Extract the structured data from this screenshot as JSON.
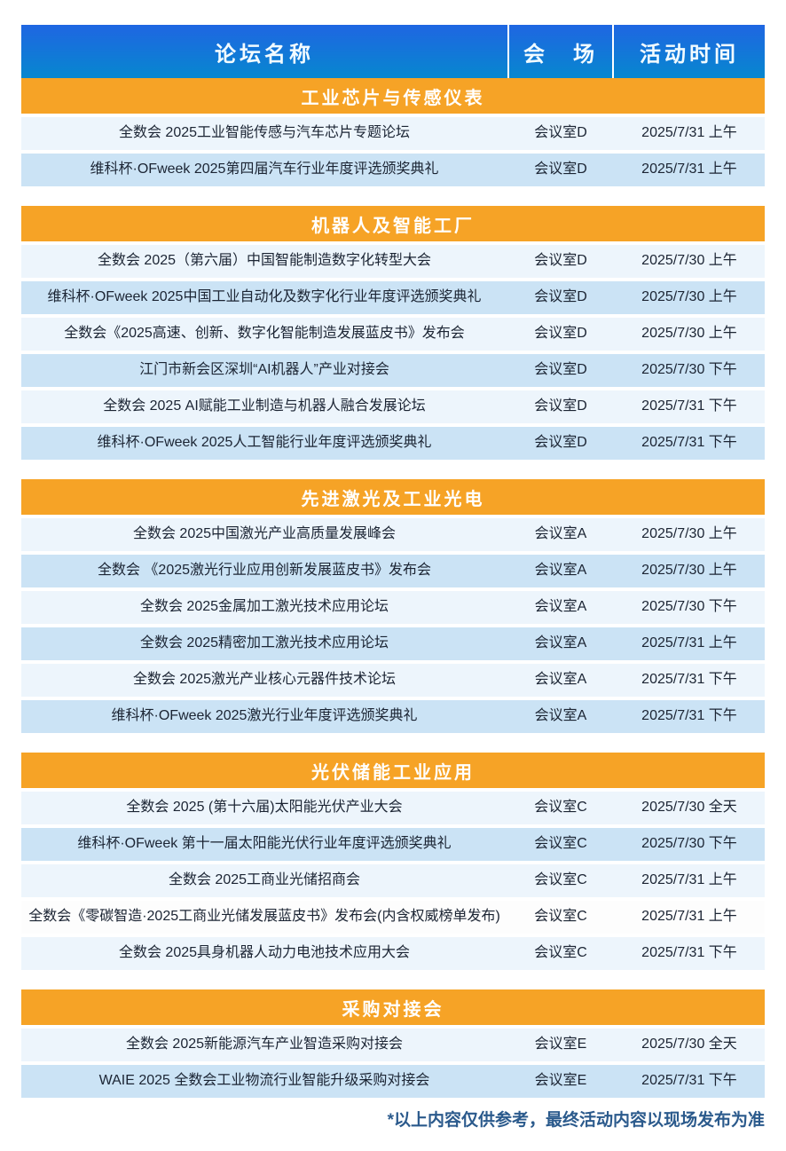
{
  "header": {
    "col_forum": "论坛名称",
    "col_venue": "会　场",
    "col_time": "活动时间"
  },
  "sections": [
    {
      "title": "工业芯片与传感仪表",
      "rows": [
        {
          "name": "全数会 2025工业智能传感与汽车芯片专题论坛",
          "venue": "会议室D",
          "time": "2025/7/31 上午",
          "shade": "light"
        },
        {
          "name": "维科杯·OFweek 2025第四届汽车行业年度评选颁奖典礼",
          "venue": "会议室D",
          "time": "2025/7/31 上午",
          "shade": "blue"
        }
      ]
    },
    {
      "title": "机器人及智能工厂",
      "rows": [
        {
          "name": "全数会 2025（第六届）中国智能制造数字化转型大会",
          "venue": "会议室D",
          "time": "2025/7/30 上午",
          "shade": "light"
        },
        {
          "name": "维科杯·OFweek 2025中国工业自动化及数字化行业年度评选颁奖典礼",
          "venue": "会议室D",
          "time": "2025/7/30 上午",
          "shade": "blue"
        },
        {
          "name": "全数会《2025高速、创新、数字化智能制造发展蓝皮书》发布会",
          "venue": "会议室D",
          "time": "2025/7/30 上午",
          "shade": "light"
        },
        {
          "name": "江门市新会区深圳“AI机器人”产业对接会",
          "venue": "会议室D",
          "time": "2025/7/30 下午",
          "shade": "blue"
        },
        {
          "name": "全数会 2025 AI赋能工业制造与机器人融合发展论坛",
          "venue": "会议室D",
          "time": "2025/7/31 下午",
          "shade": "light"
        },
        {
          "name": "维科杯·OFweek 2025人工智能行业年度评选颁奖典礼",
          "venue": "会议室D",
          "time": "2025/7/31 下午",
          "shade": "blue"
        }
      ]
    },
    {
      "title": "先进激光及工业光电",
      "rows": [
        {
          "name": "全数会 2025中国激光产业高质量发展峰会",
          "venue": "会议室A",
          "time": "2025/7/30 上午",
          "shade": "light"
        },
        {
          "name": "全数会 《2025激光行业应用创新发展蓝皮书》发布会",
          "venue": "会议室A",
          "time": "2025/7/30 上午",
          "shade": "blue"
        },
        {
          "name": "全数会 2025金属加工激光技术应用论坛",
          "venue": "会议室A",
          "time": "2025/7/30 下午",
          "shade": "light"
        },
        {
          "name": "全数会 2025精密加工激光技术应用论坛",
          "venue": "会议室A",
          "time": "2025/7/31 上午",
          "shade": "blue"
        },
        {
          "name": "全数会 2025激光产业核心元器件技术论坛",
          "venue": "会议室A",
          "time": "2025/7/31 下午",
          "shade": "light"
        },
        {
          "name": "维科杯·OFweek 2025激光行业年度评选颁奖典礼",
          "venue": "会议室A",
          "time": "2025/7/31 下午",
          "shade": "blue"
        }
      ]
    },
    {
      "title": "光伏储能工业应用",
      "rows": [
        {
          "name": "全数会 2025 (第十六届)太阳能光伏产业大会",
          "venue": "会议室C",
          "time": "2025/7/30 全天",
          "shade": "light"
        },
        {
          "name": "维科杯·OFweek 第十一届太阳能光伏行业年度评选颁奖典礼",
          "venue": "会议室C",
          "time": "2025/7/30 下午",
          "shade": "blue"
        },
        {
          "name": "全数会 2025工商业光储招商会",
          "venue": "会议室C",
          "time": "2025/7/31 上午",
          "shade": "light"
        },
        {
          "name": "全数会《零碳智造·2025工商业光储发展蓝皮书》发布会(内含权威榜单发布)",
          "venue": "会议室C",
          "time": "2025/7/31 上午",
          "shade": "white"
        },
        {
          "name": "全数会  2025具身机器人动力电池技术应用大会",
          "venue": "会议室C",
          "time": "2025/7/31 下午",
          "shade": "light"
        }
      ]
    },
    {
      "title": "采购对接会",
      "rows": [
        {
          "name": "全数会 2025新能源汽车产业智造采购对接会",
          "venue": "会议室E",
          "time": "2025/7/30 全天",
          "shade": "light"
        },
        {
          "name": "WAIE 2025 全数会工业物流行业智能升级采购对接会",
          "venue": "会议室E",
          "time": "2025/7/31 下午",
          "shade": "blue"
        }
      ]
    }
  ],
  "footer_note": "*以上内容仅供参考，最终活动内容以现场发布为准",
  "colors": {
    "header_top": "#1f66e2",
    "header_bottom": "#0787cf",
    "section_orange": "#F6A326",
    "row_light": "#edf5fc",
    "row_blue": "#cbe3f5",
    "row_white": "#fdfdfd"
  }
}
